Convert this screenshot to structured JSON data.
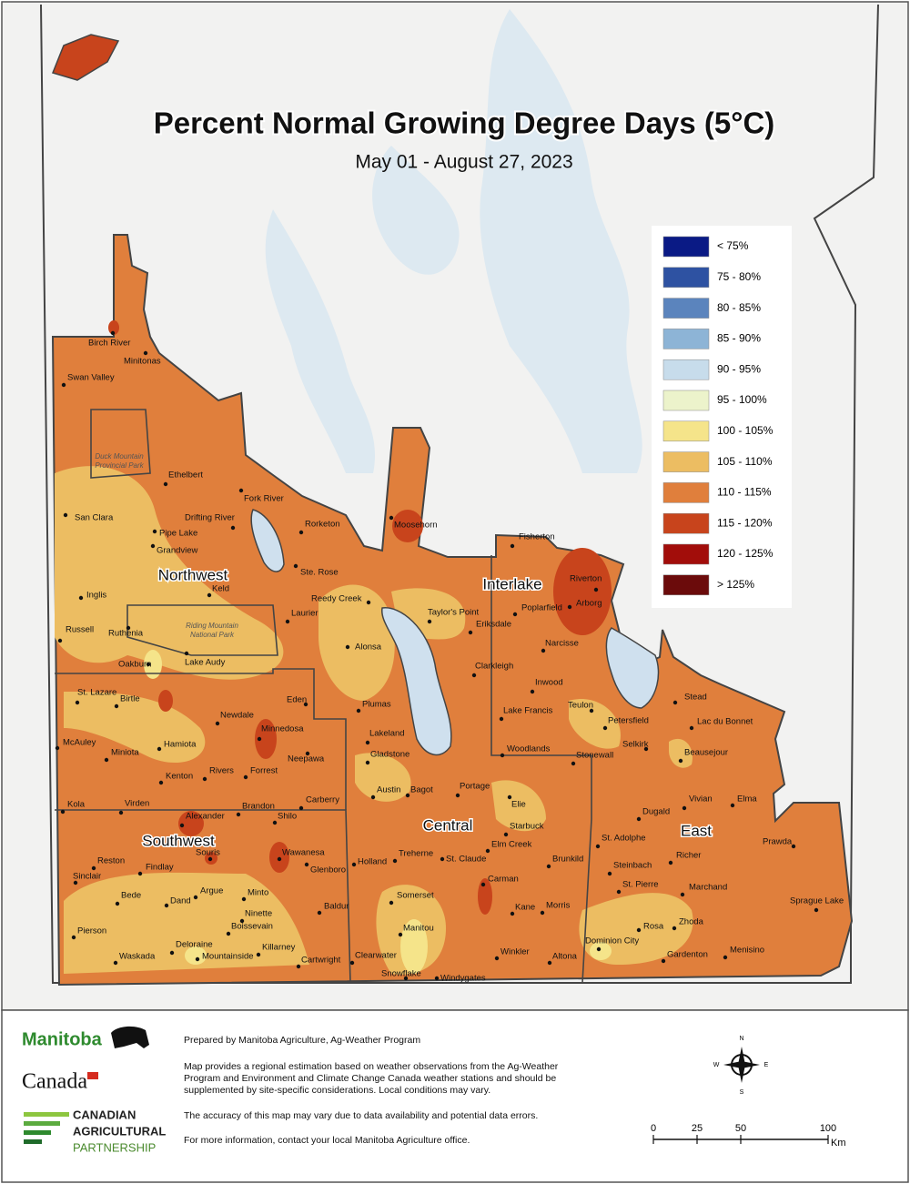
{
  "title": "Percent Normal Growing Degree Days (5°C)",
  "subtitle": "May 01 - August 27, 2023",
  "legend": [
    {
      "label": "< 75%",
      "color": "#0a1a85"
    },
    {
      "label": "75 - 80%",
      "color": "#2e52a2"
    },
    {
      "label": "80 - 85%",
      "color": "#5b84bd"
    },
    {
      "label": "85 - 90%",
      "color": "#8db4d6"
    },
    {
      "label": "90 - 95%",
      "color": "#c7dceb"
    },
    {
      "label": "95 - 100%",
      "color": "#ecf3cb"
    },
    {
      "label": "100 - 105%",
      "color": "#f5e48a"
    },
    {
      "label": "105 - 110%",
      "color": "#ecbd62"
    },
    {
      "label": "110 - 115%",
      "color": "#e07f3c"
    },
    {
      "label": "115 - 120%",
      "color": "#c8441c"
    },
    {
      "label": "120 - 125%",
      "color": "#a20d0a"
    },
    {
      "label": "> 125%",
      "color": "#6b0b0b"
    }
  ],
  "regions": [
    "Northwest",
    "Interlake",
    "Central",
    "Southwest",
    "East"
  ],
  "parks": [
    [
      "Duck Mountain",
      "Provincial Park"
    ],
    [
      "Riding Mountain",
      "National Park"
    ]
  ],
  "places": [
    "Birch River",
    "Minitonas",
    "Swan Valley",
    "Ethelbert",
    "Fork River",
    "San Clara",
    "Drifting River",
    "Rorketon",
    "Pipe Lake",
    "Grandview",
    "Moosehorn",
    "Fisherton",
    "Ste. Rose",
    "Riverton",
    "Keld",
    "Reedy Creek",
    "Inglis",
    "Taylor's Point",
    "Poplarfield",
    "Arborg",
    "Laurier",
    "Eriksdale",
    "Russell",
    "Ruthenia",
    "Alonsa",
    "Narcisse",
    "Oakburn",
    "Lake Audy",
    "Clarkleigh",
    "Inwood",
    "St. Lazare",
    "Birtle",
    "Eden",
    "Plumas",
    "Stead",
    "Teulon",
    "Lake Francis",
    "Newdale",
    "Minnedosa",
    "Lakeland",
    "Petersfield",
    "Lac du Bonnet",
    "McAuley",
    "Hamiota",
    "Neepawa",
    "Gladstone",
    "Woodlands",
    "Selkirk",
    "Stonewall",
    "Beausejour",
    "Miniota",
    "Kenton",
    "Rivers",
    "Forrest",
    "Austin",
    "Bagot",
    "Portage",
    "Vivian",
    "Elma",
    "Kola",
    "Virden",
    "Carberry",
    "Elie",
    "Brandon",
    "Dugald",
    "Shilo",
    "Alexander",
    "Starbuck",
    "St. Adolphe",
    "Prawda",
    "Elm Creek",
    "Souris",
    "Wawanesa",
    "Treherne",
    "St. Claude",
    "Brunkild",
    "Richer",
    "Reston",
    "Holland",
    "Steinbach",
    "Findlay",
    "Glenboro",
    "Sinclair",
    "Carman",
    "St. Pierre",
    "Marchand",
    "Argue",
    "Minto",
    "Bede",
    "Dand",
    "Somerset",
    "Sprague Lake",
    "Baldur",
    "Kane",
    "Morris",
    "Ninette",
    "Boissevain",
    "Rosa",
    "Zhoda",
    "Pierson",
    "Manitou",
    "Dominion City",
    "Deloraine",
    "Killarney",
    "Winkler",
    "Altona",
    "Clearwater",
    "Menisino",
    "Gardenton",
    "Waskada",
    "Mountainside",
    "Cartwright",
    "Snowflake",
    "Windygates"
  ],
  "footer": {
    "logos": [
      "Manitoba",
      "Canada"
    ],
    "partnership": [
      "CANADIAN",
      "AGRICULTURAL",
      "PARTNERSHIP"
    ],
    "prepared": "Prepared by Manitoba Agriculture, Ag-Weather Program",
    "note": [
      "Map provides a regional estimation based on weather observations from the Ag-Weather",
      "Program and Environment and Climate Change Canada weather stations and should be",
      "supplemented by site-specific considerations. Local conditions may vary."
    ],
    "accuracy": "The accuracy of this map may vary due to data availability and potential data errors.",
    "info": "For more information, contact your local Manitoba Agriculture office.",
    "compass": [
      "N",
      "E",
      "S",
      "W"
    ],
    "scale": [
      0,
      25,
      50,
      100
    ],
    "scale_unit": "Km"
  }
}
